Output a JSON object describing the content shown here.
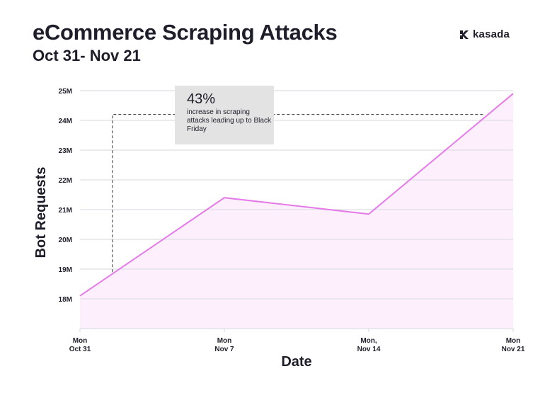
{
  "header": {
    "title": "eCommerce Scraping Attacks",
    "subtitle": "Oct 31- Nov 21"
  },
  "brand": {
    "logo_text": "kasada",
    "logo_icon": "kasada-logo-icon"
  },
  "colors": {
    "line": "#e57be8",
    "fill": "#fdf0fc",
    "grid": "#d7d7df",
    "annotation_bg": "#e3e3e3",
    "dashed": "#333333"
  },
  "annotation": {
    "value": "43%",
    "text": "increase in scraping attacks leading up to Black Friday"
  },
  "chart_data": {
    "type": "area",
    "title": "eCommerce Scraping Attacks",
    "subtitle": "Oct 31- Nov 21",
    "xlabel": "Date",
    "ylabel": "Bot Requests",
    "categories": [
      [
        "Mon",
        "Oct 31"
      ],
      [
        "Mon",
        "Nov 7"
      ],
      [
        "Mon,",
        "Nov 14"
      ],
      [
        "Mon",
        "Nov 21"
      ]
    ],
    "series": [
      {
        "name": "Bot Requests",
        "values": [
          18.1,
          21.4,
          20.85,
          24.9
        ]
      }
    ],
    "units": "M",
    "ylim": [
      17,
      25
    ],
    "yticks": [
      18,
      19,
      20,
      21,
      22,
      23,
      24,
      25
    ],
    "ytick_labels": [
      "18M",
      "19M",
      "20M",
      "21M",
      "22M",
      "23M",
      "24M",
      "25M"
    ],
    "grid": true,
    "reference": {
      "low": 18.9,
      "high": 24.2,
      "low_x_fraction": 0.075
    }
  }
}
